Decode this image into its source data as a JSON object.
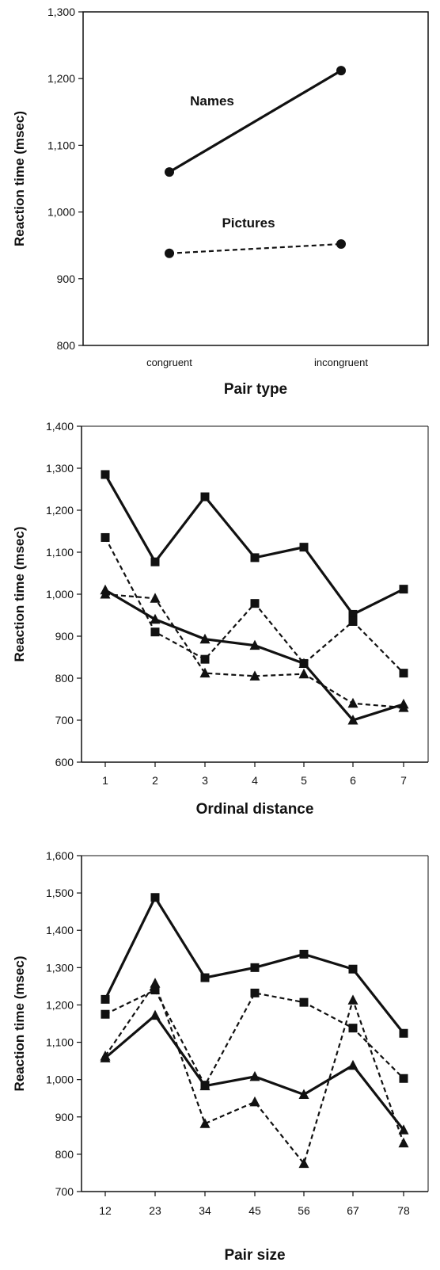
{
  "chart_data": [
    {
      "type": "line",
      "title": "",
      "xlabel": "Pair type",
      "ylabel": "Reaction time (msec)",
      "categories": [
        "congruent",
        "incongruent"
      ],
      "ylim": [
        800,
        1300
      ],
      "yticks": [
        "800",
        "900",
        "1,000",
        "1,100",
        "1,200",
        "1,300"
      ],
      "frame": "box",
      "grid": false,
      "series": [
        {
          "name": "Names",
          "style": "solid",
          "marker": "circle",
          "values": [
            1060,
            1212
          ]
        },
        {
          "name": "Pictures",
          "style": "dashed",
          "marker": "circle",
          "values": [
            938,
            952
          ]
        }
      ]
    },
    {
      "type": "line",
      "title": "",
      "xlabel": "Ordinal distance",
      "ylabel": "Reaction time (msec)",
      "categories": [
        "1",
        "2",
        "3",
        "4",
        "5",
        "6",
        "7"
      ],
      "ylim": [
        600,
        1400
      ],
      "yticks": [
        "600",
        "700",
        "800",
        "900",
        "1,000",
        "1,100",
        "1,200",
        "1,300",
        "1,400"
      ],
      "frame": "open",
      "grid": false,
      "series": [
        {
          "style": "solid",
          "marker": "square",
          "values": [
            1285,
            1077,
            1232,
            1087,
            1112,
            952,
            1012
          ]
        },
        {
          "style": "dashed",
          "marker": "square",
          "values": [
            1135,
            910,
            845,
            978,
            835,
            935,
            812
          ]
        },
        {
          "style": "solid",
          "marker": "triangle",
          "values": [
            1010,
            940,
            893,
            878,
            835,
            700,
            738
          ]
        },
        {
          "style": "dashed",
          "marker": "triangle",
          "values": [
            1000,
            990,
            812,
            805,
            810,
            740,
            730
          ]
        }
      ]
    },
    {
      "type": "line",
      "title": "",
      "xlabel": "Pair size",
      "ylabel": "Reaction time (msec)",
      "categories": [
        "12",
        "23",
        "34",
        "45",
        "56",
        "67",
        "78"
      ],
      "ylim": [
        700,
        1600
      ],
      "yticks": [
        "700",
        "800",
        "900",
        "1,000",
        "1,100",
        "1,200",
        "1,300",
        "1,400",
        "1,500",
        "1,600"
      ],
      "frame": "open",
      "grid": false,
      "series": [
        {
          "style": "solid",
          "marker": "square",
          "values": [
            1215,
            1488,
            1273,
            1300,
            1336,
            1296,
            1124
          ]
        },
        {
          "style": "dashed",
          "marker": "square",
          "values": [
            1175,
            1240,
            985,
            1232,
            1207,
            1138,
            1003
          ]
        },
        {
          "style": "solid",
          "marker": "triangle",
          "values": [
            1058,
            1172,
            983,
            1008,
            960,
            1038,
            865
          ]
        },
        {
          "style": "dashed",
          "marker": "triangle",
          "values": [
            1063,
            1258,
            882,
            940,
            775,
            1213,
            830
          ]
        }
      ]
    }
  ]
}
